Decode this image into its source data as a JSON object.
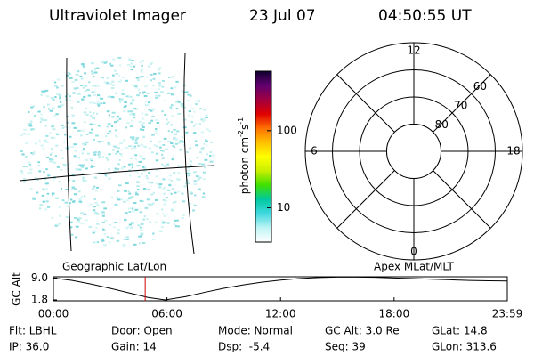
{
  "header": {
    "title": "Ultraviolet Imager",
    "date": "23 Jul 07",
    "time": "04:50:55 UT"
  },
  "colorbar": {
    "label": "photon cm",
    "exp1": "-2",
    "unit2": "s",
    "exp2": "-1",
    "log": true,
    "lim": [
      3.6,
      590
    ],
    "ticks": [
      10,
      100
    ],
    "colors": [
      "#ffffff",
      "#bff4f4",
      "#40d8e0",
      "#00c8a0",
      "#40e000",
      "#c8f000",
      "#ffff00",
      "#ffc000",
      "#ff7000",
      "#e00000",
      "#a00040",
      "#600070",
      "#100030"
    ]
  },
  "polar": {
    "rlim": [
      90,
      50
    ],
    "rings": [
      80,
      70,
      60
    ],
    "mlt_ticks": [
      12,
      18,
      6,
      0
    ]
  },
  "chart_data": {
    "type": "line",
    "ylabel": "GC Alt",
    "left_label": "Geographic Lat/Lon",
    "right_label": "Apex MLat/MLT",
    "x": [
      0,
      1,
      2,
      3,
      4,
      5,
      5.9,
      7,
      8,
      9,
      10,
      11,
      12,
      13,
      14,
      15,
      16,
      17,
      18,
      19,
      20,
      21,
      22,
      23,
      23.98
    ],
    "values": [
      9.0,
      8.2,
      7.0,
      5.6,
      4.1,
      2.6,
      1.8,
      2.9,
      4.3,
      5.6,
      6.7,
      7.6,
      8.3,
      8.8,
      9.15,
      9.3,
      9.3,
      9.2,
      9.0,
      8.8,
      8.6,
      8.4,
      8.2,
      8.1,
      8.0
    ],
    "color": "#000000",
    "marker": 4.85,
    "marker_color": "#d00000",
    "xlim": [
      0,
      23.98
    ],
    "ylim": [
      1.5,
      9.4
    ],
    "xticks": [
      {
        "value": 0,
        "label": "00:00"
      },
      {
        "value": 6,
        "label": "06:00"
      },
      {
        "value": 12,
        "label": "12:00"
      },
      {
        "value": 18,
        "label": "18:00"
      },
      {
        "value": 23.98,
        "label": "23:59"
      }
    ],
    "yticks": [
      {
        "value": 9.0,
        "label": "9.0"
      },
      {
        "value": 1.8,
        "label": "1.8"
      }
    ]
  },
  "footer": {
    "rows": [
      [
        "Flt: LBHL",
        "Door: Open",
        "Mode: Normal",
        "GC Alt: 3.0 Re",
        "GLat: 14.8"
      ],
      [
        "IP: 36.0",
        "Gain: 14",
        "Dsp:  -5.4",
        "Seq: 39",
        "GLon: 313.6"
      ]
    ]
  }
}
